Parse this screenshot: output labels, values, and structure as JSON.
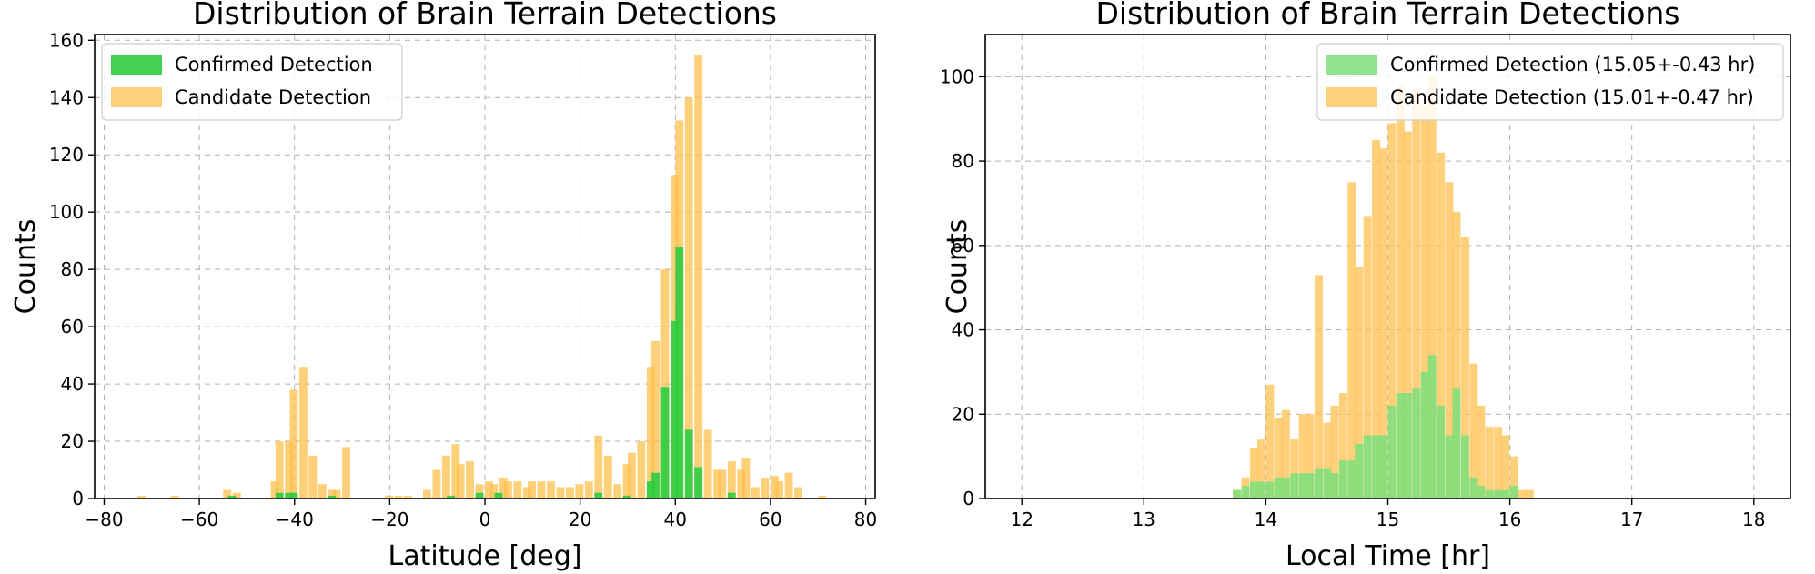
{
  "chart_data": [
    {
      "type": "histogram",
      "title": "Distribution of Brain Terrain Detections",
      "xlabel": "Latitude [deg]",
      "ylabel": "Counts",
      "xlim": [
        -82,
        82
      ],
      "ylim": [
        0,
        162
      ],
      "xticks": [
        -80,
        -60,
        -40,
        -20,
        0,
        20,
        40,
        60,
        80
      ],
      "yticks": [
        0,
        20,
        40,
        60,
        80,
        100,
        120,
        140,
        160
      ],
      "grid": true,
      "legend_position": "top-left",
      "bin_width": 1.7,
      "series": [
        {
          "name": "Confirmed Detection",
          "color": "#2ecc40",
          "alpha": 0.9,
          "bins": [
            [
              -54,
              1
            ],
            [
              -44,
              2
            ],
            [
              -42,
              2
            ],
            [
              -41,
              2
            ],
            [
              -33,
              1
            ],
            [
              -8,
              1
            ],
            [
              -2,
              2
            ],
            [
              2,
              2
            ],
            [
              23,
              2
            ],
            [
              29,
              1
            ],
            [
              34,
              6
            ],
            [
              35,
              9
            ],
            [
              37,
              39
            ],
            [
              39,
              62
            ],
            [
              40,
              88
            ],
            [
              42,
              24
            ],
            [
              44,
              11
            ],
            [
              51,
              2
            ]
          ]
        },
        {
          "name": "Candidate Detection",
          "color": "#ffc04d",
          "alpha": 0.75,
          "bins": [
            [
              -73,
              1
            ],
            [
              -66,
              1
            ],
            [
              -55,
              3
            ],
            [
              -53,
              2
            ],
            [
              -45,
              6
            ],
            [
              -44,
              20
            ],
            [
              -42,
              20
            ],
            [
              -41,
              38
            ],
            [
              -39,
              46
            ],
            [
              -37,
              15
            ],
            [
              -35,
              5
            ],
            [
              -33,
              3
            ],
            [
              -32,
              3
            ],
            [
              -30,
              18
            ],
            [
              -21,
              1
            ],
            [
              -19,
              1
            ],
            [
              -17,
              1
            ],
            [
              -13,
              3
            ],
            [
              -11,
              10
            ],
            [
              -9,
              15
            ],
            [
              -7,
              19
            ],
            [
              -6,
              12
            ],
            [
              -4,
              13
            ],
            [
              -2,
              5
            ],
            [
              0,
              6
            ],
            [
              1,
              5
            ],
            [
              3,
              7
            ],
            [
              4,
              6
            ],
            [
              6,
              6
            ],
            [
              8,
              4
            ],
            [
              9,
              6
            ],
            [
              11,
              6
            ],
            [
              13,
              6
            ],
            [
              15,
              4
            ],
            [
              17,
              4
            ],
            [
              19,
              5
            ],
            [
              21,
              6
            ],
            [
              23,
              22
            ],
            [
              25,
              15
            ],
            [
              27,
              5
            ],
            [
              29,
              12
            ],
            [
              30,
              16
            ],
            [
              32,
              20
            ],
            [
              34,
              46
            ],
            [
              35,
              55
            ],
            [
              37,
              80
            ],
            [
              39,
              113
            ],
            [
              40,
              132
            ],
            [
              42,
              140
            ],
            [
              44,
              155
            ],
            [
              46,
              24
            ],
            [
              48,
              10
            ],
            [
              49,
              10
            ],
            [
              51,
              13
            ],
            [
              53,
              10
            ],
            [
              54,
              14
            ],
            [
              56,
              4
            ],
            [
              58,
              7
            ],
            [
              60,
              8
            ],
            [
              61,
              6
            ],
            [
              63,
              9
            ],
            [
              65,
              4
            ],
            [
              70,
              1
            ]
          ]
        }
      ]
    },
    {
      "type": "histogram",
      "title": "Distribution of Brain Terrain Detections",
      "xlabel": "Local Time [hr]",
      "ylabel": "Counts",
      "xlim": [
        11.7,
        18.3
      ],
      "ylim": [
        0,
        110
      ],
      "xticks": [
        12,
        13,
        14,
        15,
        16,
        17,
        18
      ],
      "yticks": [
        0,
        20,
        40,
        60,
        80,
        100
      ],
      "grid": true,
      "legend_position": "top-right",
      "bin_width": 0.0667,
      "series": [
        {
          "name": "Confirmed Detection (15.05+-0.43 hr)",
          "color": "#7ddf7d",
          "alpha": 0.85,
          "bins": [
            [
              13.73,
              2
            ],
            [
              13.8,
              3
            ],
            [
              13.87,
              4
            ],
            [
              13.93,
              4
            ],
            [
              14.0,
              4
            ],
            [
              14.07,
              5
            ],
            [
              14.13,
              5
            ],
            [
              14.2,
              6
            ],
            [
              14.27,
              6
            ],
            [
              14.33,
              6
            ],
            [
              14.4,
              7
            ],
            [
              14.47,
              7
            ],
            [
              14.53,
              6
            ],
            [
              14.6,
              9
            ],
            [
              14.67,
              9
            ],
            [
              14.73,
              13
            ],
            [
              14.8,
              15
            ],
            [
              14.87,
              15
            ],
            [
              14.93,
              15
            ],
            [
              15.0,
              22
            ],
            [
              15.07,
              25
            ],
            [
              15.13,
              25
            ],
            [
              15.2,
              26
            ],
            [
              15.27,
              30
            ],
            [
              15.33,
              34
            ],
            [
              15.4,
              22
            ],
            [
              15.47,
              15
            ],
            [
              15.53,
              26
            ],
            [
              15.6,
              15
            ],
            [
              15.67,
              5
            ],
            [
              15.73,
              3
            ],
            [
              15.8,
              2
            ],
            [
              15.87,
              2
            ],
            [
              15.93,
              2
            ],
            [
              16.0,
              3
            ]
          ]
        },
        {
          "name": "Candidate Detection (15.01+-0.47 hr)",
          "color": "#ffc04d",
          "alpha": 0.75,
          "bins": [
            [
              13.73,
              2
            ],
            [
              13.8,
              5
            ],
            [
              13.87,
              12
            ],
            [
              13.93,
              14
            ],
            [
              14.0,
              27
            ],
            [
              14.07,
              19
            ],
            [
              14.13,
              21
            ],
            [
              14.2,
              14
            ],
            [
              14.27,
              20
            ],
            [
              14.33,
              20
            ],
            [
              14.4,
              53
            ],
            [
              14.47,
              18
            ],
            [
              14.53,
              22
            ],
            [
              14.6,
              25
            ],
            [
              14.67,
              75
            ],
            [
              14.73,
              55
            ],
            [
              14.8,
              67
            ],
            [
              14.87,
              85
            ],
            [
              14.93,
              83
            ],
            [
              15.0,
              89
            ],
            [
              15.07,
              98
            ],
            [
              15.13,
              87
            ],
            [
              15.2,
              97
            ],
            [
              15.27,
              93
            ],
            [
              15.33,
              100
            ],
            [
              15.4,
              82
            ],
            [
              15.47,
              75
            ],
            [
              15.53,
              68
            ],
            [
              15.6,
              62
            ],
            [
              15.67,
              32
            ],
            [
              15.73,
              22
            ],
            [
              15.8,
              17
            ],
            [
              15.87,
              17
            ],
            [
              15.93,
              15
            ],
            [
              16.0,
              10
            ],
            [
              16.07,
              2
            ],
            [
              16.13,
              2
            ]
          ]
        }
      ]
    }
  ]
}
